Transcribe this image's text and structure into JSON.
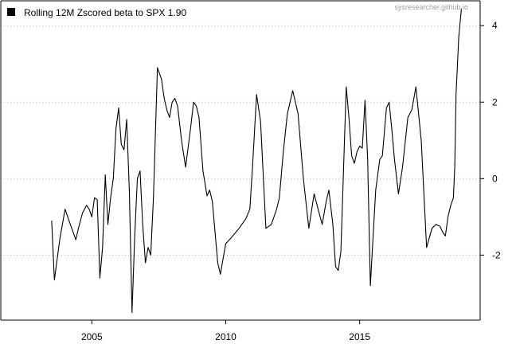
{
  "chart_data": {
    "type": "line",
    "legend": {
      "label": "Rolling 12M Zscored beta to SPX 1.90",
      "position": "top-left",
      "marker_color": "#000000"
    },
    "watermark": "sysresearcher.github.io",
    "x_axis": {
      "ticks": [
        "2005",
        "2010",
        "2015"
      ],
      "range": [
        2001.6,
        2019.5
      ]
    },
    "y_axis": {
      "ticks": [
        "-2",
        "0",
        "2",
        "4"
      ],
      "range": [
        -3.7,
        4.65
      ],
      "side": "right"
    },
    "grid": "horizontal dotted",
    "series": [
      {
        "color": "#000000",
        "x": [
          2003.5,
          2003.6,
          2003.8,
          2004.0,
          2004.2,
          2004.4,
          2004.5,
          2004.65,
          2004.8,
          2004.9,
          2005.0,
          2005.1,
          2005.2,
          2005.3,
          2005.4,
          2005.5,
          2005.6,
          2005.7,
          2005.8,
          2005.9,
          2006.0,
          2006.1,
          2006.2,
          2006.3,
          2006.4,
          2006.5,
          2006.6,
          2006.7,
          2006.8,
          2006.9,
          2007.0,
          2007.1,
          2007.2,
          2007.3,
          2007.45,
          2007.6,
          2007.7,
          2007.8,
          2007.9,
          2008.0,
          2008.1,
          2008.2,
          2008.35,
          2008.5,
          2008.7,
          2008.8,
          2008.9,
          2009.0,
          2009.15,
          2009.3,
          2009.4,
          2009.5,
          2009.7,
          2009.8,
          2009.9,
          2010.0,
          2010.2,
          2010.5,
          2010.75,
          2010.9,
          2011.0,
          2011.15,
          2011.3,
          2011.5,
          2011.7,
          2011.9,
          2012.0,
          2012.15,
          2012.3,
          2012.5,
          2012.7,
          2012.9,
          2013.1,
          2013.3,
          2013.45,
          2013.6,
          2013.75,
          2013.85,
          2014.0,
          2014.1,
          2014.2,
          2014.3,
          2014.4,
          2014.5,
          2014.6,
          2014.7,
          2014.8,
          2014.9,
          2015.0,
          2015.1,
          2015.2,
          2015.3,
          2015.4,
          2015.6,
          2015.75,
          2015.85,
          2016.0,
          2016.1,
          2016.2,
          2016.3,
          2016.45,
          2016.6,
          2016.8,
          2016.95,
          2017.1,
          2017.3,
          2017.5,
          2017.7,
          2017.85,
          2018.0,
          2018.1,
          2018.2,
          2018.3,
          2018.4,
          2018.5,
          2018.55,
          2018.6,
          2018.7,
          2018.8
        ],
        "y": [
          -1.1,
          -2.65,
          -1.6,
          -0.8,
          -1.2,
          -1.6,
          -1.3,
          -0.9,
          -0.7,
          -0.8,
          -1.0,
          -0.5,
          -0.55,
          -2.6,
          -1.8,
          0.1,
          -1.2,
          -0.5,
          0.0,
          1.3,
          1.85,
          0.9,
          0.75,
          1.55,
          -0.3,
          -3.5,
          -1.5,
          0.0,
          0.2,
          -1.2,
          -2.2,
          -1.8,
          -2.0,
          -0.5,
          2.9,
          2.6,
          2.1,
          1.8,
          1.6,
          2.0,
          2.1,
          1.9,
          1.0,
          0.3,
          1.4,
          2.0,
          1.9,
          1.6,
          0.2,
          -0.45,
          -0.3,
          -0.6,
          -2.2,
          -2.5,
          -2.1,
          -1.7,
          -1.55,
          -1.3,
          -1.05,
          -0.8,
          0.3,
          2.2,
          1.5,
          -1.3,
          -1.2,
          -0.8,
          -0.5,
          0.7,
          1.7,
          2.3,
          1.7,
          0.0,
          -1.3,
          -0.4,
          -0.8,
          -1.2,
          -0.6,
          -0.3,
          -1.2,
          -2.3,
          -2.4,
          -1.9,
          0.3,
          2.4,
          1.6,
          0.6,
          0.4,
          0.7,
          0.85,
          0.8,
          2.05,
          0.5,
          -2.8,
          -0.3,
          0.5,
          0.6,
          1.85,
          2.0,
          1.3,
          0.5,
          -0.4,
          0.3,
          1.6,
          1.8,
          2.4,
          1.0,
          -1.8,
          -1.3,
          -1.2,
          -1.25,
          -1.4,
          -1.5,
          -1.0,
          -0.7,
          -0.5,
          0.3,
          2.2,
          3.7,
          4.45
        ]
      }
    ]
  }
}
